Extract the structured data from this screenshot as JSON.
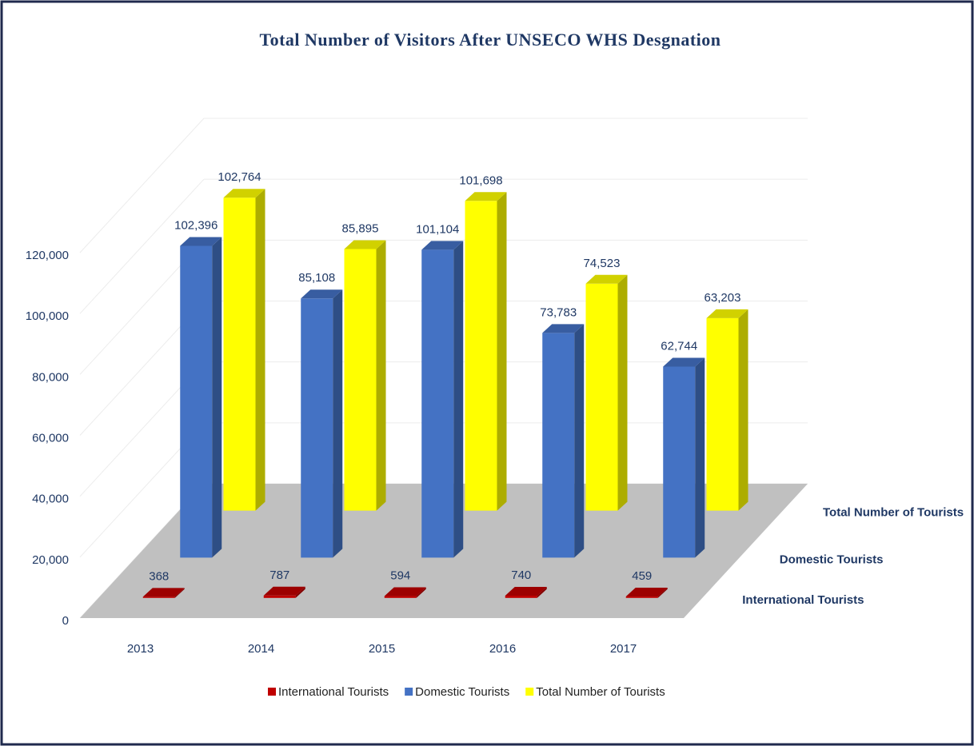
{
  "chart_data": {
    "type": "bar3d",
    "title": "Total Number of Visitors After UNSECO WHS Desgnation",
    "categories": [
      "2013",
      "2014",
      "2015",
      "2016",
      "2017"
    ],
    "series": [
      {
        "name": "International Tourists",
        "color": "#c00000",
        "values": [
          368,
          787,
          594,
          740,
          459
        ],
        "value_labels": [
          "368",
          "787",
          "594",
          "740",
          "459"
        ]
      },
      {
        "name": "Domestic Tourists",
        "color": "#4472c4",
        "values": [
          102396,
          85108,
          101104,
          73783,
          62744
        ],
        "value_labels": [
          "102,396",
          "85,108",
          "101,104",
          "73,783",
          "62,744"
        ]
      },
      {
        "name": "Total Number of Tourists",
        "color": "#ffff00",
        "values": [
          102764,
          85895,
          101698,
          74523,
          63203
        ],
        "value_labels": [
          "102,764",
          "85,895",
          "101,698",
          "74,523",
          "63,203"
        ]
      }
    ],
    "ylim": [
      0,
      120000
    ],
    "yticks": [
      0,
      {
        "value": 20000,
        "label": "20,000"
      },
      {
        "value": 40000,
        "label": "40,000"
      },
      {
        "value": 60000,
        "label": "60,000"
      },
      {
        "value": 80000,
        "label": "80,000"
      },
      {
        "value": 100000,
        "label": "100,000"
      },
      {
        "value": 120000,
        "label": "120,000"
      }
    ],
    "grid": true,
    "legend": "bottom"
  }
}
